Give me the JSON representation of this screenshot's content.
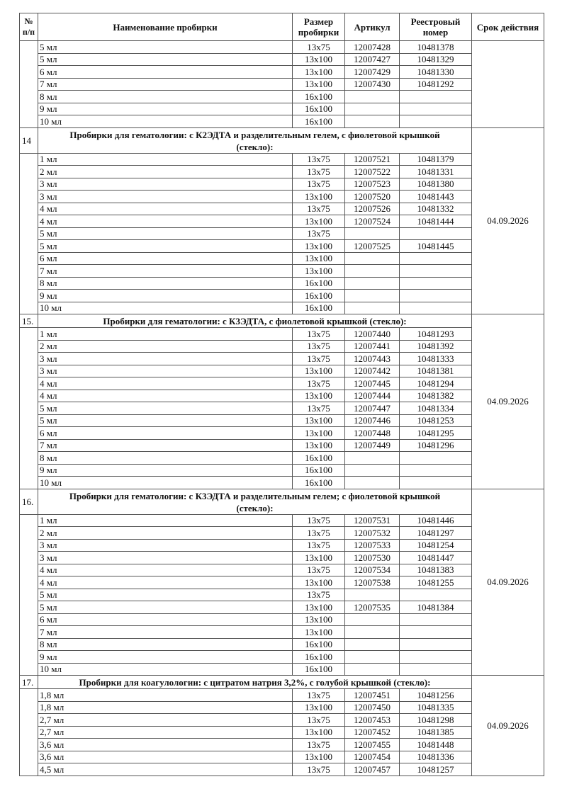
{
  "header": {
    "num": "№ п/п",
    "name": "Наименование пробирки",
    "size": "Размер пробирки",
    "article": "Артикул",
    "registry": "Реестровый номер",
    "expiry": "Срок действия"
  },
  "sections": [
    {
      "number": "",
      "title": "",
      "expiry": "",
      "rows": [
        {
          "name": "5 мл",
          "size": "13x75",
          "article": "12007428",
          "registry": "10481378"
        },
        {
          "name": "5 мл",
          "size": "13x100",
          "article": "12007427",
          "registry": "10481329"
        },
        {
          "name": "6 мл",
          "size": "13x100",
          "article": "12007429",
          "registry": "10481330"
        },
        {
          "name": "7 мл",
          "size": "13x100",
          "article": "12007430",
          "registry": "10481292"
        },
        {
          "name": "8 мл",
          "size": "16x100",
          "article": "",
          "registry": ""
        },
        {
          "name": "9 мл",
          "size": "16x100",
          "article": "",
          "registry": ""
        },
        {
          "name": "10 мл",
          "size": "16x100",
          "article": "",
          "registry": ""
        }
      ]
    },
    {
      "number": "14",
      "title": "Пробирки для гематологии: с К2ЭДТА и разделительным гелем, с фиолетовой крышкой (стекло):",
      "expiry": "04.09.2026",
      "rows": [
        {
          "name": "1 мл",
          "size": "13x75",
          "article": "12007521",
          "registry": "10481379"
        },
        {
          "name": "2 мл",
          "size": "13x75",
          "article": "12007522",
          "registry": "10481331"
        },
        {
          "name": "3 мл",
          "size": "13x75",
          "article": "12007523",
          "registry": "10481380"
        },
        {
          "name": "3 мл",
          "size": "13x100",
          "article": "12007520",
          "registry": "10481443"
        },
        {
          "name": "4 мл",
          "size": "13x75",
          "article": "12007526",
          "registry": "10481332"
        },
        {
          "name": "4 мл",
          "size": "13x100",
          "article": "12007524",
          "registry": "10481444"
        },
        {
          "name": "5 мл",
          "size": "13x75",
          "article": "",
          "registry": ""
        },
        {
          "name": "5 мл",
          "size": "13x100",
          "article": "12007525",
          "registry": "10481445"
        },
        {
          "name": "6 мл",
          "size": "13x100",
          "article": "",
          "registry": ""
        },
        {
          "name": "7 мл",
          "size": "13x100",
          "article": "",
          "registry": ""
        },
        {
          "name": "8 мл",
          "size": "16x100",
          "article": "",
          "registry": ""
        },
        {
          "name": "9 мл",
          "size": "16x100",
          "article": "",
          "registry": ""
        },
        {
          "name": "10 мл",
          "size": "16x100",
          "article": "",
          "registry": ""
        }
      ]
    },
    {
      "number": "15.",
      "title": "Пробирки для гематологии: с К3ЭДТА, с фиолетовой крышкой (стекло):",
      "expiry": "04.09.2026",
      "rows": [
        {
          "name": "1 мл",
          "size": "13x75",
          "article": "12007440",
          "registry": "10481293"
        },
        {
          "name": "2 мл",
          "size": "13x75",
          "article": "12007441",
          "registry": "10481392"
        },
        {
          "name": "3 мл",
          "size": "13x75",
          "article": "12007443",
          "registry": "10481333"
        },
        {
          "name": "3 мл",
          "size": "13x100",
          "article": "12007442",
          "registry": "10481381"
        },
        {
          "name": "4 мл",
          "size": "13x75",
          "article": "12007445",
          "registry": "10481294"
        },
        {
          "name": "4 мл",
          "size": "13x100",
          "article": "12007444",
          "registry": "10481382"
        },
        {
          "name": "5 мл",
          "size": "13x75",
          "article": "12007447",
          "registry": "10481334"
        },
        {
          "name": "5 мл",
          "size": "13x100",
          "article": "12007446",
          "registry": "10481253"
        },
        {
          "name": "6 мл",
          "size": "13x100",
          "article": "12007448",
          "registry": "10481295"
        },
        {
          "name": "7 мл",
          "size": "13x100",
          "article": "12007449",
          "registry": "10481296"
        },
        {
          "name": "8 мл",
          "size": "16x100",
          "article": "",
          "registry": ""
        },
        {
          "name": "9 мл",
          "size": "16x100",
          "article": "",
          "registry": ""
        },
        {
          "name": "10 мл",
          "size": "16x100",
          "article": "",
          "registry": ""
        }
      ]
    },
    {
      "number": "16.",
      "title": "Пробирки для гематологии: с К3ЭДТА и разделительным гелем; с фиолетовой крышкой (стекло):",
      "expiry": "04.09.2026",
      "rows": [
        {
          "name": "1 мл",
          "size": "13x75",
          "article": "12007531",
          "registry": "10481446"
        },
        {
          "name": "2 мл",
          "size": "13x75",
          "article": "12007532",
          "registry": "10481297"
        },
        {
          "name": "3 мл",
          "size": "13x75",
          "article": "12007533",
          "registry": "10481254"
        },
        {
          "name": "3 мл",
          "size": "13x100",
          "article": "12007530",
          "registry": "10481447"
        },
        {
          "name": "4 мл",
          "size": "13x75",
          "article": "12007534",
          "registry": "10481383"
        },
        {
          "name": "4 мл",
          "size": "13x100",
          "article": "12007538",
          "registry": "10481255"
        },
        {
          "name": "5 мл",
          "size": "13x75",
          "article": "",
          "registry": ""
        },
        {
          "name": "5 мл",
          "size": "13x100",
          "article": "12007535",
          "registry": "10481384"
        },
        {
          "name": "6 мл",
          "size": "13x100",
          "article": "",
          "registry": ""
        },
        {
          "name": "7 мл",
          "size": "13x100",
          "article": "",
          "registry": ""
        },
        {
          "name": "8 мл",
          "size": "16x100",
          "article": "",
          "registry": ""
        },
        {
          "name": "9 мл",
          "size": "16x100",
          "article": "",
          "registry": ""
        },
        {
          "name": "10 мл",
          "size": "16x100",
          "article": "",
          "registry": ""
        }
      ]
    },
    {
      "number": "17.",
      "title": "Пробирки для коагулологии: с цитратом натрия 3,2%, с голубой крышкой (стекло):",
      "expiry": "04.09.2026",
      "rows": [
        {
          "name": "1,8 мл",
          "size": "13x75",
          "article": "12007451",
          "registry": "10481256"
        },
        {
          "name": "1,8 мл",
          "size": "13x100",
          "article": "12007450",
          "registry": "10481335"
        },
        {
          "name": "2,7 мл",
          "size": "13x75",
          "article": "12007453",
          "registry": "10481298"
        },
        {
          "name": "2,7 мл",
          "size": "13x100",
          "article": "12007452",
          "registry": "10481385"
        },
        {
          "name": "3,6 мл",
          "size": "13x75",
          "article": "12007455",
          "registry": "10481448"
        },
        {
          "name": "3,6 мл",
          "size": "13x100",
          "article": "12007454",
          "registry": "10481336"
        },
        {
          "name": "4,5 мл",
          "size": "13x75",
          "article": "12007457",
          "registry": "10481257"
        }
      ]
    }
  ]
}
